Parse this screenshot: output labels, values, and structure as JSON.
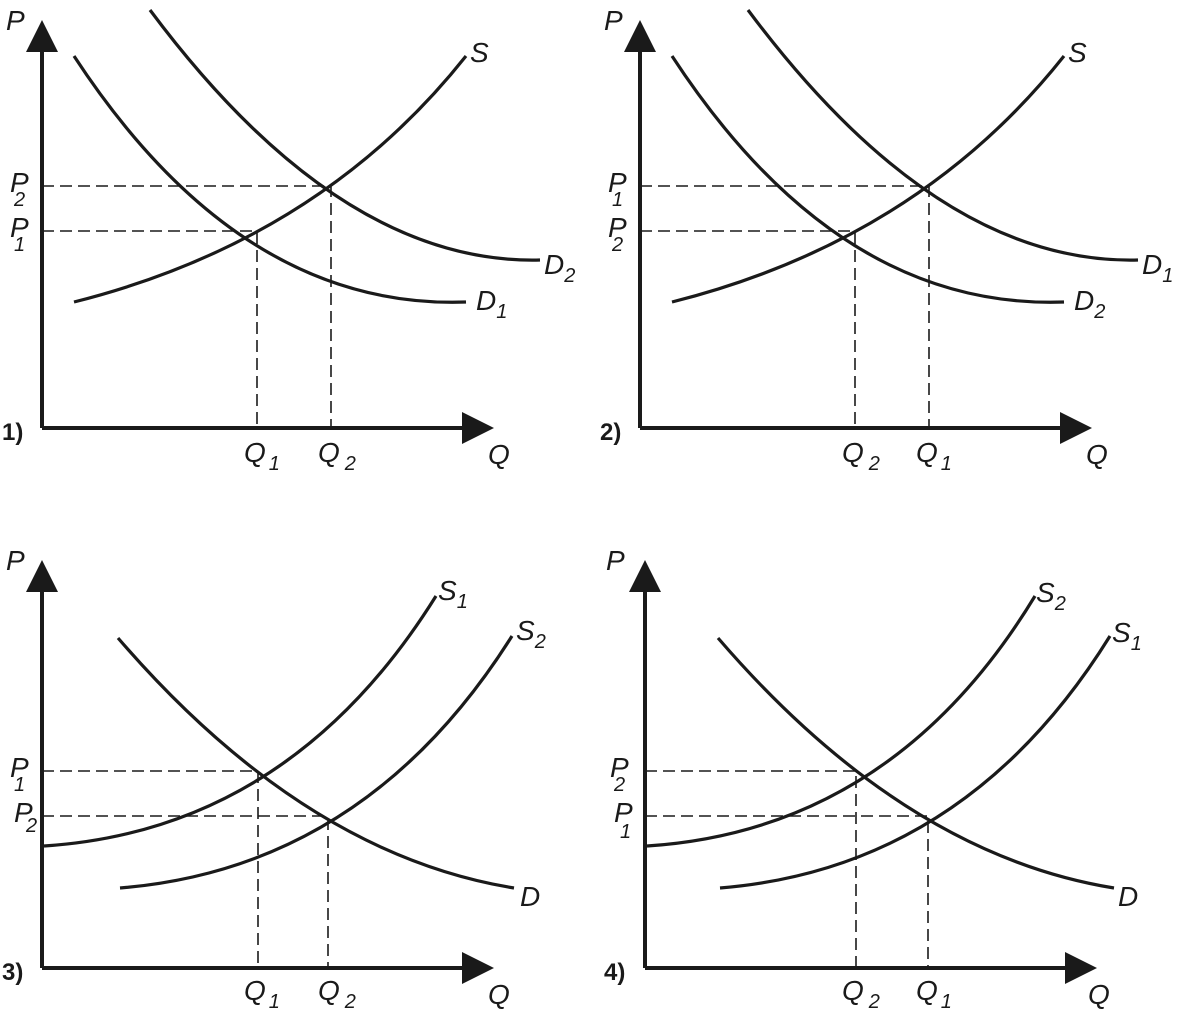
{
  "colors": {
    "ink": "#1a1a1a",
    "background": "#ffffff"
  },
  "panels": [
    {
      "number": "1)",
      "axis_y": "P",
      "axis_x": "Q",
      "curves": [
        {
          "id": "supply",
          "label": "S",
          "sub": ""
        },
        {
          "id": "demand-low",
          "label": "D",
          "sub": "1"
        },
        {
          "id": "demand-high",
          "label": "D",
          "sub": "2"
        }
      ],
      "equilibria": [
        {
          "p_label": "P",
          "p_sub": "1",
          "q_label": "Q",
          "q_sub": "1"
        },
        {
          "p_label": "P",
          "p_sub": "2",
          "q_label": "Q",
          "q_sub": "2"
        }
      ]
    },
    {
      "number": "2)",
      "axis_y": "P",
      "axis_x": "Q",
      "curves": [
        {
          "id": "supply",
          "label": "S",
          "sub": ""
        },
        {
          "id": "demand-low",
          "label": "D",
          "sub": "2"
        },
        {
          "id": "demand-high",
          "label": "D",
          "sub": "1"
        }
      ],
      "equilibria": [
        {
          "p_label": "P",
          "p_sub": "2",
          "q_label": "Q",
          "q_sub": "2"
        },
        {
          "p_label": "P",
          "p_sub": "1",
          "q_label": "Q",
          "q_sub": "1"
        }
      ]
    },
    {
      "number": "3)",
      "axis_y": "P",
      "axis_x": "Q",
      "curves": [
        {
          "id": "supply-left",
          "label": "S",
          "sub": "1"
        },
        {
          "id": "supply-right",
          "label": "S",
          "sub": "2"
        },
        {
          "id": "demand",
          "label": "D",
          "sub": ""
        }
      ],
      "equilibria": [
        {
          "p_label": "P",
          "p_sub": "1",
          "q_label": "Q",
          "q_sub": "1"
        },
        {
          "p_label": "P",
          "p_sub": "2",
          "q_label": "Q",
          "q_sub": "2"
        }
      ]
    },
    {
      "number": "4)",
      "axis_y": "P",
      "axis_x": "Q",
      "curves": [
        {
          "id": "supply-left",
          "label": "S",
          "sub": "2"
        },
        {
          "id": "supply-right",
          "label": "S",
          "sub": "1"
        },
        {
          "id": "demand",
          "label": "D",
          "sub": ""
        }
      ],
      "equilibria": [
        {
          "p_label": "P",
          "p_sub": "2",
          "q_label": "Q",
          "q_sub": "2"
        },
        {
          "p_label": "P",
          "p_sub": "1",
          "q_label": "Q",
          "q_sub": "1"
        }
      ]
    }
  ]
}
